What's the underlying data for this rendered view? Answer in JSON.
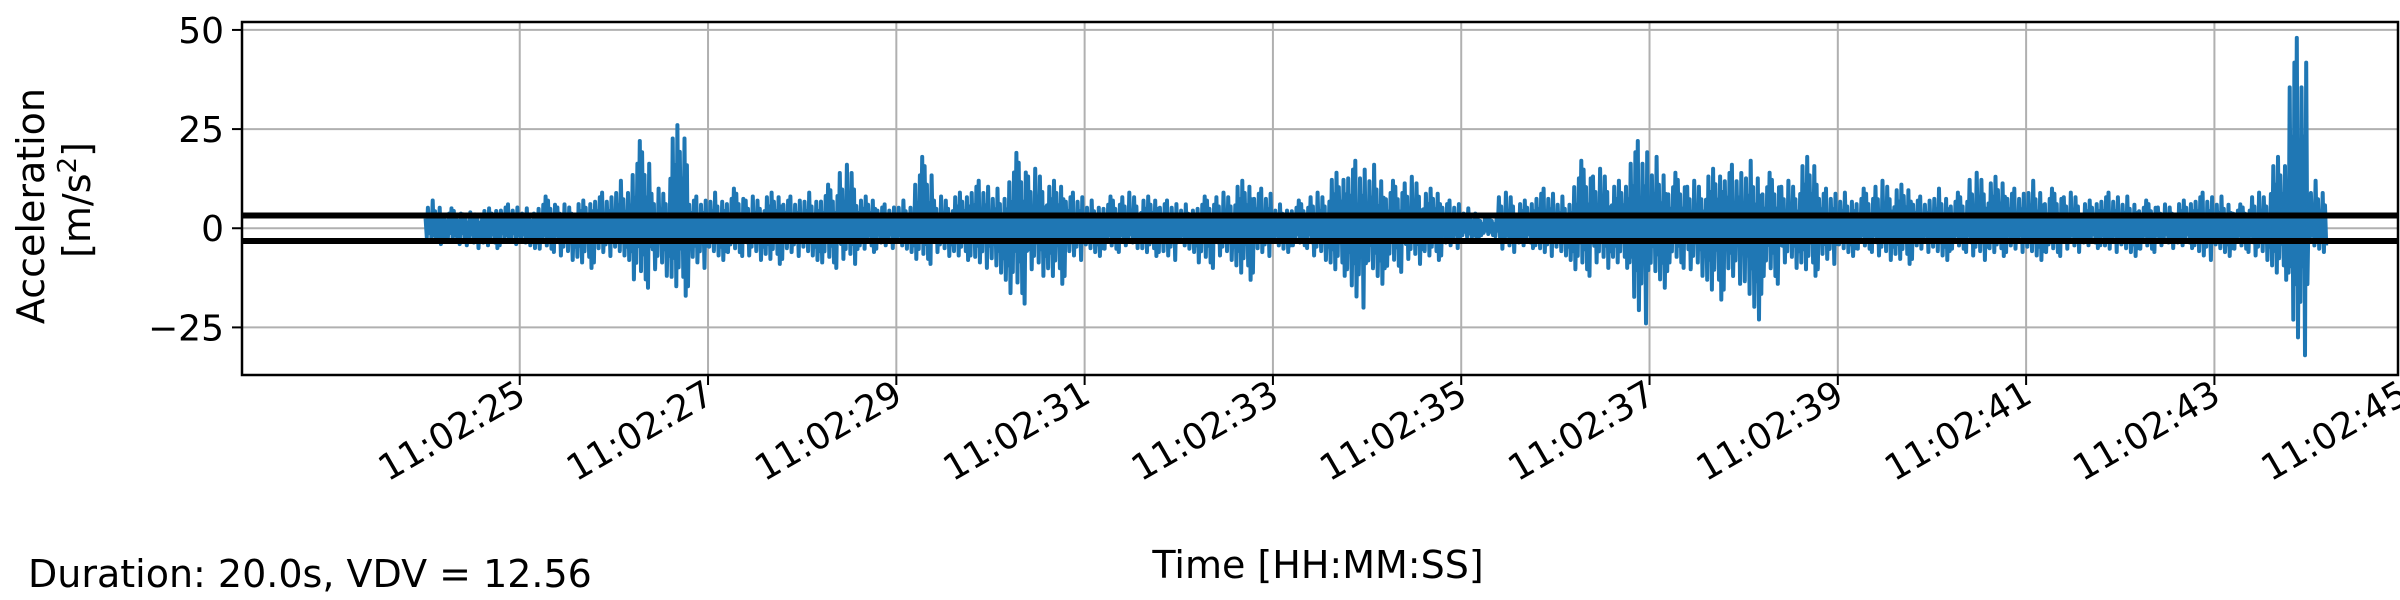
{
  "chart_data": {
    "type": "line",
    "title": "",
    "xlabel": "Time [HH:MM:SS]",
    "ylabel_line1": "Acceleration",
    "ylabel_line2_prefix": "[m/s",
    "ylabel_line2_sup": "2",
    "ylabel_line2_suffix": "]",
    "x_unit": "seconds after 11:02:00",
    "xlim": [
      22.05,
      44.95
    ],
    "ylim": [
      -37,
      52
    ],
    "xticks": [
      25,
      27,
      29,
      31,
      33,
      35,
      37,
      39,
      41,
      43,
      45
    ],
    "xtick_labels": [
      "11:02:25",
      "11:02:27",
      "11:02:29",
      "11:02:31",
      "11:02:33",
      "11:02:35",
      "11:02:37",
      "11:02:39",
      "11:02:41",
      "11:02:43",
      "11:02:45"
    ],
    "yticks": [
      -25,
      0,
      25,
      50
    ],
    "ytick_labels": [
      "−25",
      "0",
      "25",
      "50"
    ],
    "grid": true,
    "series_color": "#1f77b4",
    "threshold_color": "#000000",
    "thresholds": [
      3.2,
      -3.2
    ],
    "series": [
      {
        "x": [
          24.0,
          24.2,
          24.4,
          24.6,
          24.8,
          25.0,
          25.2,
          25.4,
          25.6,
          25.8,
          26.0,
          26.2,
          26.4,
          26.6,
          26.8,
          27.0,
          27.2,
          27.4,
          27.6,
          27.8,
          28.0,
          28.2,
          28.4,
          28.6,
          28.8,
          29.0,
          29.2,
          29.4,
          29.6,
          29.8,
          30.0,
          30.2,
          30.4,
          30.6,
          30.8,
          31.0,
          31.2,
          31.4,
          31.6,
          31.8,
          32.0,
          32.2,
          32.4,
          32.6,
          32.8,
          33.0,
          33.2,
          33.4,
          33.6,
          33.8,
          34.0,
          34.2,
          34.4,
          34.6,
          34.8,
          35.0,
          35.2,
          35.4,
          35.6,
          35.8,
          36.0,
          36.2,
          36.4,
          36.6,
          36.8,
          37.0,
          37.2,
          37.4,
          37.6,
          37.8,
          38.0,
          38.2,
          38.4,
          38.6,
          38.8,
          39.0,
          39.2,
          39.4,
          39.6,
          39.8,
          40.0,
          40.2,
          40.4,
          40.6,
          40.8,
          41.0,
          41.2,
          41.4,
          41.6,
          41.8,
          42.0,
          42.2,
          42.4,
          42.6,
          42.8,
          43.0,
          43.2,
          43.4,
          43.6,
          43.8,
          44.0
        ],
        "max": [
          7,
          5,
          4,
          5,
          6,
          5,
          8,
          6,
          7,
          9,
          12,
          22,
          10,
          26,
          8,
          9,
          10,
          8,
          9,
          8,
          9,
          11,
          16,
          8,
          6,
          7,
          18,
          8,
          9,
          12,
          10,
          19,
          15,
          12,
          9,
          7,
          8,
          9,
          8,
          7,
          6,
          8,
          9,
          12,
          10,
          6,
          7,
          9,
          14,
          17,
          16,
          12,
          13,
          10,
          7,
          5,
          3,
          9,
          7,
          10,
          8,
          17,
          15,
          12,
          22,
          18,
          14,
          12,
          15,
          16,
          17,
          14,
          12,
          18,
          10,
          9,
          10,
          12,
          11,
          8,
          10,
          9,
          14,
          13,
          10,
          12,
          10,
          9,
          7,
          9,
          8,
          7,
          6,
          7,
          9,
          8,
          6,
          9,
          18,
          48,
          12
        ],
        "min": [
          -4,
          -4,
          -5,
          -5,
          -4,
          -5,
          -6,
          -8,
          -10,
          -7,
          -8,
          -15,
          -12,
          -17,
          -10,
          -8,
          -7,
          -8,
          -9,
          -7,
          -8,
          -10,
          -9,
          -6,
          -5,
          -6,
          -9,
          -7,
          -8,
          -10,
          -13,
          -19,
          -12,
          -14,
          -8,
          -7,
          -6,
          -5,
          -7,
          -8,
          -6,
          -10,
          -8,
          -13,
          -7,
          -6,
          -5,
          -8,
          -12,
          -20,
          -14,
          -11,
          -9,
          -8,
          -5,
          -3,
          -2,
          -6,
          -5,
          -7,
          -8,
          -12,
          -10,
          -10,
          -24,
          -15,
          -10,
          -12,
          -18,
          -14,
          -23,
          -14,
          -10,
          -12,
          -9,
          -7,
          -6,
          -8,
          -9,
          -6,
          -8,
          -6,
          -8,
          -7,
          -6,
          -8,
          -7,
          -6,
          -5,
          -6,
          -7,
          -6,
          -5,
          -5,
          -8,
          -7,
          -6,
          -8,
          -13,
          -32,
          -6
        ]
      }
    ]
  },
  "annotation": {
    "duration_text": "Duration: 20.0s, VDV = 12.56"
  }
}
